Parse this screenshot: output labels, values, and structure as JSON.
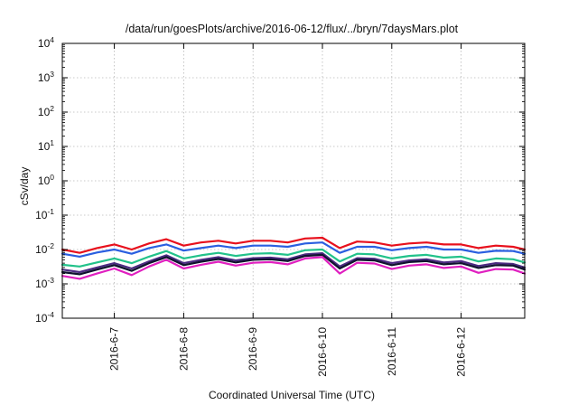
{
  "chart_data": {
    "type": "line",
    "title": "/data/run/goesPlots/archive/2016-06-12/flux/../bryn/7daysMars.plot",
    "xlabel": "Coordinated Universal Time (UTC)",
    "ylabel": "cSv/day",
    "yscale": "log",
    "ylim": [
      0.0001,
      10000
    ],
    "xlim": [
      "2016-06-06 06:00",
      "2016-06-12 22:00"
    ],
    "grid": true,
    "y_ticks": [
      {
        "base": "10",
        "exp": "4"
      },
      {
        "base": "10",
        "exp": "3"
      },
      {
        "base": "10",
        "exp": "2"
      },
      {
        "base": "10",
        "exp": "1"
      },
      {
        "base": "10",
        "exp": "0"
      },
      {
        "base": "10",
        "exp": "-1"
      },
      {
        "base": "10",
        "exp": "-2"
      },
      {
        "base": "10",
        "exp": "-3"
      },
      {
        "base": "10",
        "exp": "-4"
      }
    ],
    "x_ticks": [
      {
        "label": "2016-6-7",
        "value": "2016-06-07 00:00"
      },
      {
        "label": "2016-6-8",
        "value": "2016-06-08 00:00"
      },
      {
        "label": "2016-6-9",
        "value": "2016-06-09 00:00"
      },
      {
        "label": "2016-6-10",
        "value": "2016-06-10 00:00"
      },
      {
        "label": "2016-6-11",
        "value": "2016-06-11 00:00"
      },
      {
        "label": "2016-6-12",
        "value": "2016-06-12 00:00"
      }
    ],
    "x": [
      "2016-06-06 06:00",
      "2016-06-06 12:00",
      "2016-06-06 18:00",
      "2016-06-07 00:00",
      "2016-06-07 06:00",
      "2016-06-07 12:00",
      "2016-06-07 18:00",
      "2016-06-08 00:00",
      "2016-06-08 06:00",
      "2016-06-08 12:00",
      "2016-06-08 18:00",
      "2016-06-09 00:00",
      "2016-06-09 06:00",
      "2016-06-09 12:00",
      "2016-06-09 18:00",
      "2016-06-10 00:00",
      "2016-06-10 06:00",
      "2016-06-10 12:00",
      "2016-06-10 18:00",
      "2016-06-11 00:00",
      "2016-06-11 06:00",
      "2016-06-11 12:00",
      "2016-06-11 18:00",
      "2016-06-12 00:00",
      "2016-06-12 06:00",
      "2016-06-12 12:00",
      "2016-06-12 18:00",
      "2016-06-12 22:00"
    ],
    "series": [
      {
        "color": "#e8101c",
        "values": [
          0.01,
          0.008,
          0.011,
          0.014,
          0.01,
          0.015,
          0.02,
          0.013,
          0.016,
          0.018,
          0.015,
          0.018,
          0.018,
          0.016,
          0.021,
          0.022,
          0.011,
          0.017,
          0.016,
          0.013,
          0.015,
          0.016,
          0.014,
          0.014,
          0.011,
          0.013,
          0.012,
          0.01
        ]
      },
      {
        "color": "#2a5fe0",
        "values": [
          0.0075,
          0.0062,
          0.0082,
          0.01,
          0.0075,
          0.011,
          0.014,
          0.0093,
          0.011,
          0.013,
          0.011,
          0.013,
          0.013,
          0.012,
          0.015,
          0.016,
          0.008,
          0.012,
          0.012,
          0.0095,
          0.011,
          0.012,
          0.01,
          0.01,
          0.008,
          0.0092,
          0.009,
          0.0075
        ]
      },
      {
        "color": "#22c28a",
        "values": [
          0.0036,
          0.0032,
          0.0042,
          0.0055,
          0.004,
          0.0062,
          0.009,
          0.0055,
          0.0068,
          0.008,
          0.0065,
          0.0075,
          0.0078,
          0.007,
          0.0095,
          0.01,
          0.0045,
          0.0075,
          0.0072,
          0.0055,
          0.0065,
          0.007,
          0.0058,
          0.0062,
          0.0045,
          0.0055,
          0.0052,
          0.0042
        ]
      },
      {
        "color": "#4a2a80",
        "values": [
          0.0026,
          0.0022,
          0.003,
          0.004,
          0.0028,
          0.0045,
          0.0068,
          0.004,
          0.005,
          0.006,
          0.0048,
          0.0056,
          0.0058,
          0.0052,
          0.0072,
          0.0078,
          0.0032,
          0.0056,
          0.0054,
          0.004,
          0.0048,
          0.0052,
          0.0042,
          0.0046,
          0.0033,
          0.004,
          0.0038,
          0.003
        ]
      },
      {
        "color": "#10122e",
        "values": [
          0.0022,
          0.0019,
          0.0026,
          0.0035,
          0.0024,
          0.004,
          0.006,
          0.0035,
          0.0044,
          0.0053,
          0.0042,
          0.005,
          0.0052,
          0.0046,
          0.0065,
          0.007,
          0.0028,
          0.005,
          0.0048,
          0.0035,
          0.0043,
          0.0046,
          0.0037,
          0.004,
          0.0029,
          0.0035,
          0.0034,
          0.0026
        ]
      },
      {
        "color": "#e020c0",
        "values": [
          0.0017,
          0.0014,
          0.002,
          0.0028,
          0.0018,
          0.0032,
          0.005,
          0.0028,
          0.0036,
          0.0044,
          0.0034,
          0.0041,
          0.0043,
          0.0037,
          0.0055,
          0.006,
          0.002,
          0.0041,
          0.0039,
          0.0027,
          0.0034,
          0.0037,
          0.0029,
          0.0032,
          0.0021,
          0.0027,
          0.0026,
          0.002
        ]
      }
    ]
  }
}
